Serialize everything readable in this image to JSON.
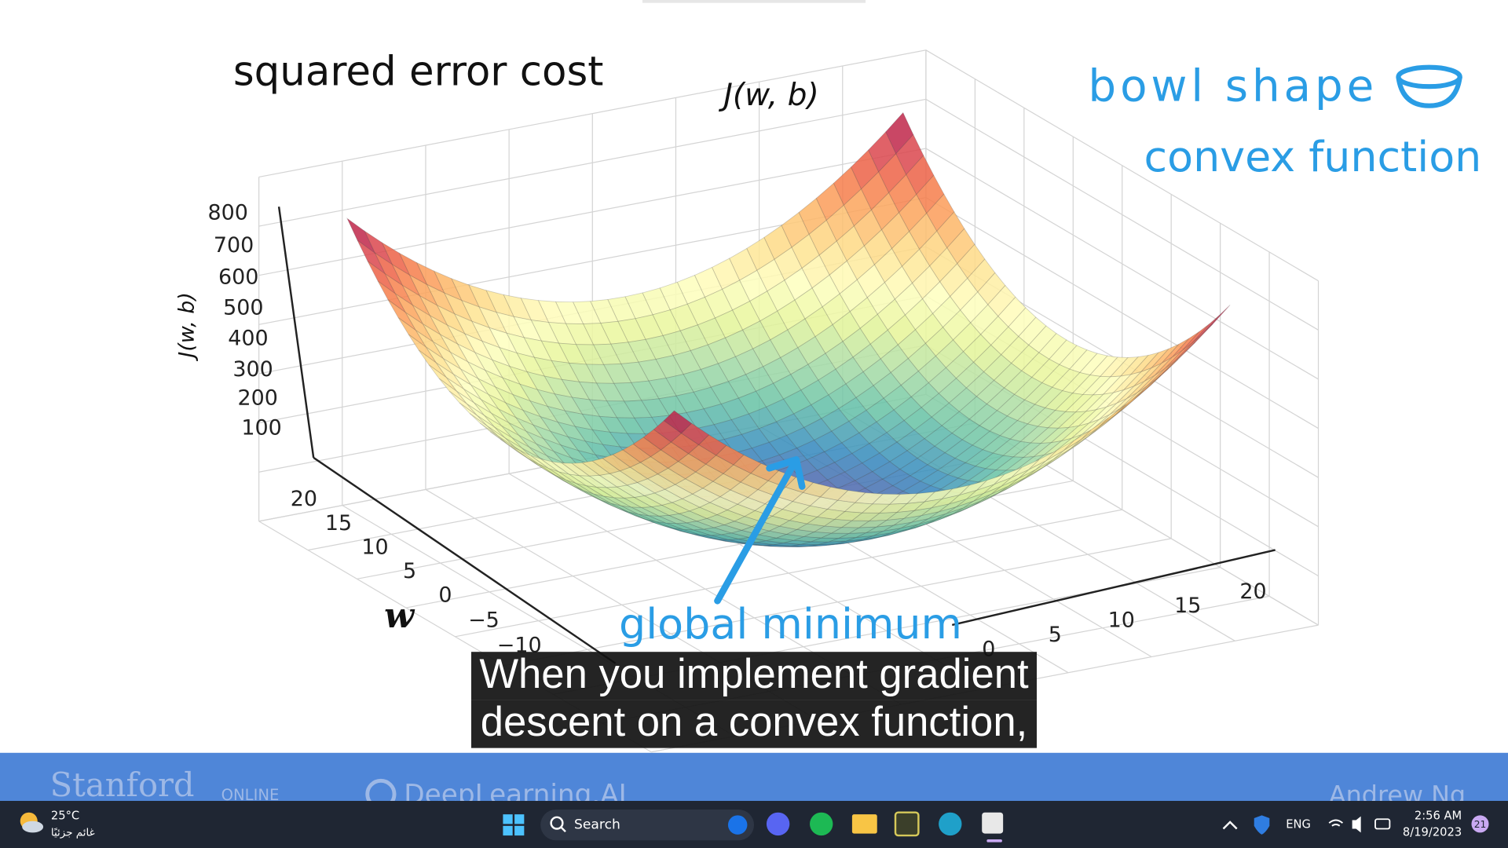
{
  "lecture": {
    "title": "squared error cost",
    "surface_label": "J(w, b)",
    "z_axis_label": "J(w, b)",
    "z_ticks": [
      "800",
      "700",
      "600",
      "500",
      "400",
      "300",
      "200",
      "100"
    ],
    "w_axis_label": "w",
    "w_ticks": [
      "20",
      "15",
      "10",
      "5",
      "0",
      "−5",
      "−10"
    ],
    "b_ticks": [
      "0",
      "5",
      "10",
      "15",
      "20"
    ],
    "annotations": {
      "bowl": "bowl shape",
      "convex": "convex function",
      "minimum": "global minimum"
    }
  },
  "caption": {
    "lines": [
      "When you implement gradient",
      "descent on a convex function,"
    ]
  },
  "banner": {
    "left": "Stanford",
    "left_sub": "ONLINE",
    "middle": "DeepLearning.AI",
    "right": "Andrew Ng"
  },
  "taskbar": {
    "weather_temp": "25°C",
    "weather_text": "غائم جزئيًا",
    "search": "Search",
    "language": "ENG",
    "time": "2:56 AM",
    "date": "8/19/2023",
    "notifications": "21"
  }
}
